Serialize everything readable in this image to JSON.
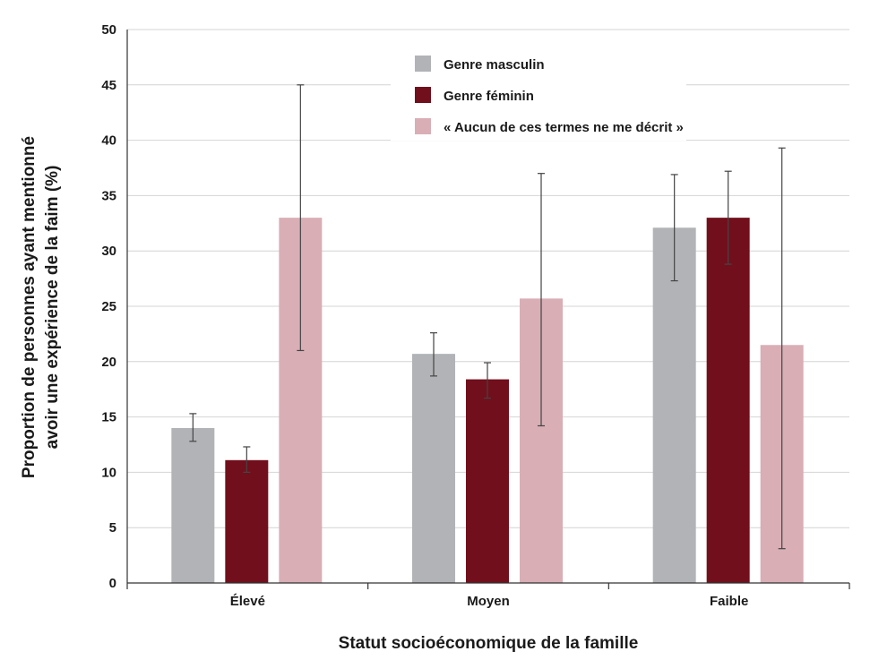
{
  "chart_data": {
    "type": "bar",
    "categories": [
      "Élevé",
      "Moyen",
      "Faible"
    ],
    "series": [
      {
        "name": "Genre masculin",
        "color": "#b1b3b6",
        "values": [
          14.0,
          20.7,
          32.1
        ],
        "error_low": [
          12.8,
          18.7,
          27.3
        ],
        "error_high": [
          15.3,
          22.6,
          36.9
        ]
      },
      {
        "name": "Genre féminin",
        "color": "#720f1c",
        "values": [
          11.1,
          18.4,
          33.0
        ],
        "error_low": [
          10.0,
          16.7,
          28.8
        ],
        "error_high": [
          12.3,
          19.9,
          37.2
        ]
      },
      {
        "name": "« Aucun de ces termes ne me décrit »",
        "color": "#d9aeb5",
        "values": [
          33.0,
          25.7,
          21.5
        ],
        "error_low": [
          21.0,
          14.2,
          3.1
        ],
        "error_high": [
          45.0,
          37.0,
          39.3
        ]
      }
    ],
    "xlabel": "Statut socioéconomique de la famille",
    "ylabel_line1": "Proportion de personnes ayant mentionné",
    "ylabel_line2": "avoir une expérience de la faim (%)",
    "ylim": [
      0,
      50
    ],
    "yticks": [
      "0",
      "5",
      "10",
      "15",
      "20",
      "25",
      "30",
      "35",
      "40",
      "45",
      "50"
    ],
    "grid": true,
    "legend_position": "top-center"
  }
}
